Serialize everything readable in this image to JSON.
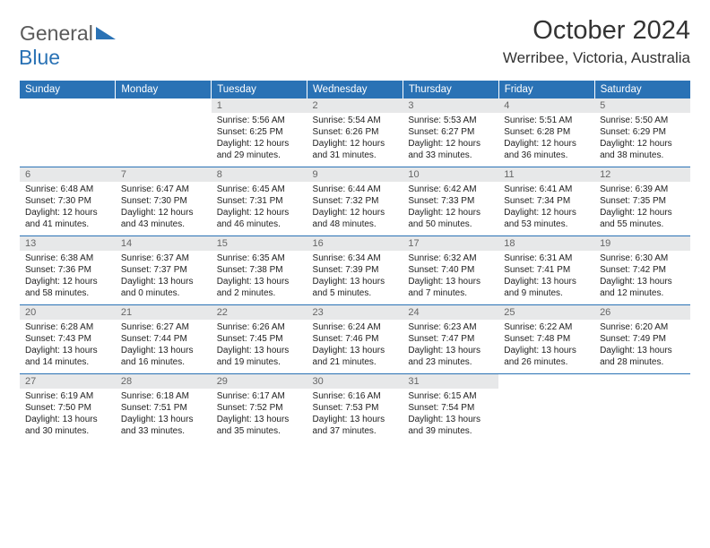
{
  "logo": {
    "text1": "General",
    "text2": "Blue",
    "triangle_color": "#2a72b5"
  },
  "title": "October 2024",
  "location": "Werribee, Victoria, Australia",
  "colors": {
    "header_bg": "#2a72b5",
    "header_text": "#ffffff",
    "daynum_bg": "#e7e8e9",
    "daynum_text": "#666666",
    "cell_text": "#222222",
    "border": "#2a72b5"
  },
  "weekdays": [
    "Sunday",
    "Monday",
    "Tuesday",
    "Wednesday",
    "Thursday",
    "Friday",
    "Saturday"
  ],
  "weeks": [
    [
      null,
      null,
      {
        "n": "1",
        "sr": "5:56 AM",
        "ss": "6:25 PM",
        "dl": "12 hours and 29 minutes."
      },
      {
        "n": "2",
        "sr": "5:54 AM",
        "ss": "6:26 PM",
        "dl": "12 hours and 31 minutes."
      },
      {
        "n": "3",
        "sr": "5:53 AM",
        "ss": "6:27 PM",
        "dl": "12 hours and 33 minutes."
      },
      {
        "n": "4",
        "sr": "5:51 AM",
        "ss": "6:28 PM",
        "dl": "12 hours and 36 minutes."
      },
      {
        "n": "5",
        "sr": "5:50 AM",
        "ss": "6:29 PM",
        "dl": "12 hours and 38 minutes."
      }
    ],
    [
      {
        "n": "6",
        "sr": "6:48 AM",
        "ss": "7:30 PM",
        "dl": "12 hours and 41 minutes."
      },
      {
        "n": "7",
        "sr": "6:47 AM",
        "ss": "7:30 PM",
        "dl": "12 hours and 43 minutes."
      },
      {
        "n": "8",
        "sr": "6:45 AM",
        "ss": "7:31 PM",
        "dl": "12 hours and 46 minutes."
      },
      {
        "n": "9",
        "sr": "6:44 AM",
        "ss": "7:32 PM",
        "dl": "12 hours and 48 minutes."
      },
      {
        "n": "10",
        "sr": "6:42 AM",
        "ss": "7:33 PM",
        "dl": "12 hours and 50 minutes."
      },
      {
        "n": "11",
        "sr": "6:41 AM",
        "ss": "7:34 PM",
        "dl": "12 hours and 53 minutes."
      },
      {
        "n": "12",
        "sr": "6:39 AM",
        "ss": "7:35 PM",
        "dl": "12 hours and 55 minutes."
      }
    ],
    [
      {
        "n": "13",
        "sr": "6:38 AM",
        "ss": "7:36 PM",
        "dl": "12 hours and 58 minutes."
      },
      {
        "n": "14",
        "sr": "6:37 AM",
        "ss": "7:37 PM",
        "dl": "13 hours and 0 minutes."
      },
      {
        "n": "15",
        "sr": "6:35 AM",
        "ss": "7:38 PM",
        "dl": "13 hours and 2 minutes."
      },
      {
        "n": "16",
        "sr": "6:34 AM",
        "ss": "7:39 PM",
        "dl": "13 hours and 5 minutes."
      },
      {
        "n": "17",
        "sr": "6:32 AM",
        "ss": "7:40 PM",
        "dl": "13 hours and 7 minutes."
      },
      {
        "n": "18",
        "sr": "6:31 AM",
        "ss": "7:41 PM",
        "dl": "13 hours and 9 minutes."
      },
      {
        "n": "19",
        "sr": "6:30 AM",
        "ss": "7:42 PM",
        "dl": "13 hours and 12 minutes."
      }
    ],
    [
      {
        "n": "20",
        "sr": "6:28 AM",
        "ss": "7:43 PM",
        "dl": "13 hours and 14 minutes."
      },
      {
        "n": "21",
        "sr": "6:27 AM",
        "ss": "7:44 PM",
        "dl": "13 hours and 16 minutes."
      },
      {
        "n": "22",
        "sr": "6:26 AM",
        "ss": "7:45 PM",
        "dl": "13 hours and 19 minutes."
      },
      {
        "n": "23",
        "sr": "6:24 AM",
        "ss": "7:46 PM",
        "dl": "13 hours and 21 minutes."
      },
      {
        "n": "24",
        "sr": "6:23 AM",
        "ss": "7:47 PM",
        "dl": "13 hours and 23 minutes."
      },
      {
        "n": "25",
        "sr": "6:22 AM",
        "ss": "7:48 PM",
        "dl": "13 hours and 26 minutes."
      },
      {
        "n": "26",
        "sr": "6:20 AM",
        "ss": "7:49 PM",
        "dl": "13 hours and 28 minutes."
      }
    ],
    [
      {
        "n": "27",
        "sr": "6:19 AM",
        "ss": "7:50 PM",
        "dl": "13 hours and 30 minutes."
      },
      {
        "n": "28",
        "sr": "6:18 AM",
        "ss": "7:51 PM",
        "dl": "13 hours and 33 minutes."
      },
      {
        "n": "29",
        "sr": "6:17 AM",
        "ss": "7:52 PM",
        "dl": "13 hours and 35 minutes."
      },
      {
        "n": "30",
        "sr": "6:16 AM",
        "ss": "7:53 PM",
        "dl": "13 hours and 37 minutes."
      },
      {
        "n": "31",
        "sr": "6:15 AM",
        "ss": "7:54 PM",
        "dl": "13 hours and 39 minutes."
      },
      null,
      null
    ]
  ],
  "labels": {
    "sunrise": "Sunrise: ",
    "sunset": "Sunset: ",
    "daylight": "Daylight: "
  }
}
